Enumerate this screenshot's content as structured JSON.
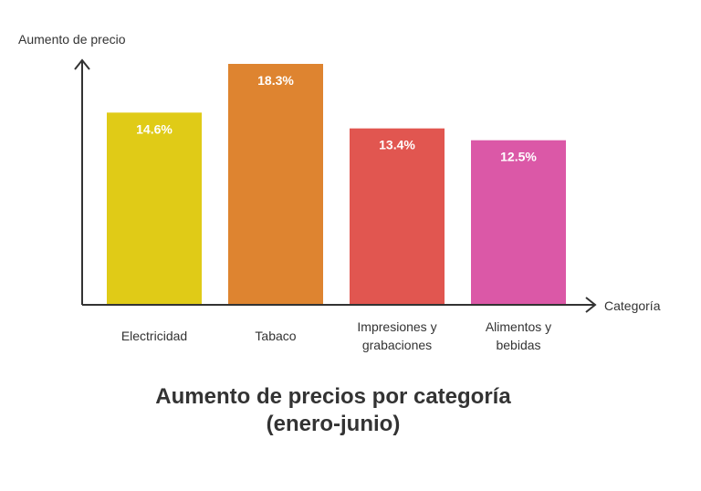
{
  "chart_data": {
    "type": "bar",
    "title_lines": [
      "Aumento de precios por categoría",
      "(enero-junio)"
    ],
    "xlabel": "Categoría",
    "ylabel": "Aumento de precio",
    "categories": [
      [
        "Electricidad"
      ],
      [
        "Tabaco"
      ],
      [
        "Impresiones y",
        "grabaciones"
      ],
      [
        "Alimentos y",
        "bebidas"
      ]
    ],
    "values": [
      14.6,
      18.3,
      13.4,
      12.5
    ],
    "value_labels": [
      "14.6%",
      "18.3%",
      "13.4%",
      "12.5%"
    ],
    "colors": [
      "#e0cb17",
      "#de8430",
      "#e15650",
      "#db58a7"
    ],
    "ylim": [
      0,
      18.3
    ],
    "grid": false,
    "legend": "none"
  }
}
